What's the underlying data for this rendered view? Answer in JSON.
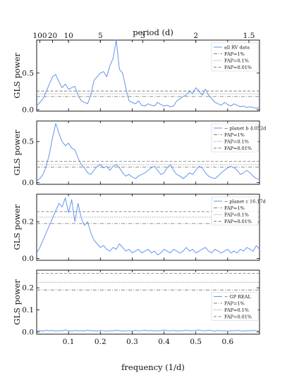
{
  "figure": {
    "top_axis_label": "period (d)",
    "top_tick_labels": [
      "100",
      "20",
      "10",
      "5",
      "3",
      "2",
      "1.5"
    ],
    "top_tick_periods": [
      100,
      20,
      10,
      5,
      3,
      2,
      1.5
    ],
    "x_label": "frequency (1/d)",
    "x_tick_labels": [
      "0.1",
      "0.2",
      "0.3",
      "0.4",
      "0.5",
      "0.6"
    ]
  },
  "colors": {
    "periodogram": "#6495ed",
    "fap": "#808080",
    "axes": "#000000"
  },
  "chart_data": [
    {
      "type": "line",
      "ylabel": "GLS power",
      "xlim": [
        0,
        0.7
      ],
      "ylim": [
        -0.02,
        0.95
      ],
      "yticks": [
        0.0,
        0.5
      ],
      "ytick_labels": [
        "0.0",
        "0.5"
      ],
      "legend_placement": "top-right",
      "series": [
        {
          "name": "all RV data",
          "x": [
            0.0,
            0.01,
            0.02,
            0.03,
            0.04,
            0.05,
            0.06,
            0.07,
            0.08,
            0.09,
            0.1,
            0.11,
            0.12,
            0.13,
            0.14,
            0.15,
            0.16,
            0.17,
            0.18,
            0.19,
            0.2,
            0.21,
            0.22,
            0.23,
            0.24,
            0.25,
            0.26,
            0.27,
            0.28,
            0.29,
            0.3,
            0.31,
            0.32,
            0.33,
            0.34,
            0.35,
            0.36,
            0.37,
            0.38,
            0.39,
            0.4,
            0.41,
            0.42,
            0.43,
            0.44,
            0.45,
            0.46,
            0.47,
            0.48,
            0.49,
            0.5,
            0.51,
            0.52,
            0.53,
            0.54,
            0.55,
            0.56,
            0.57,
            0.58,
            0.59,
            0.6,
            0.61,
            0.62,
            0.63,
            0.64,
            0.65,
            0.66,
            0.67,
            0.68,
            0.69,
            0.7
          ],
          "y": [
            0.05,
            0.1,
            0.15,
            0.25,
            0.35,
            0.45,
            0.48,
            0.38,
            0.3,
            0.35,
            0.28,
            0.3,
            0.32,
            0.2,
            0.12,
            0.1,
            0.08,
            0.2,
            0.4,
            0.45,
            0.5,
            0.52,
            0.45,
            0.6,
            0.7,
            0.95,
            0.55,
            0.5,
            0.3,
            0.12,
            0.1,
            0.08,
            0.12,
            0.06,
            0.05,
            0.08,
            0.06,
            0.05,
            0.1,
            0.07,
            0.05,
            0.06,
            0.04,
            0.05,
            0.12,
            0.15,
            0.18,
            0.2,
            0.25,
            0.22,
            0.3,
            0.25,
            0.2,
            0.28,
            0.2,
            0.15,
            0.1,
            0.08,
            0.06,
            0.1,
            0.07,
            0.05,
            0.08,
            0.06,
            0.04,
            0.05,
            0.03,
            0.04,
            0.03,
            0.02,
            0.03
          ]
        }
      ],
      "fap_levels": [
        {
          "name": "FAP=1%",
          "value": 0.18,
          "style": "dashdot"
        },
        {
          "name": "FAP=0.1%",
          "value": 0.215,
          "style": "dotted"
        },
        {
          "name": "FAP=0.01%",
          "value": 0.255,
          "style": "dashed"
        }
      ]
    },
    {
      "type": "line",
      "ylabel": "GLS power",
      "xlim": [
        0,
        0.7
      ],
      "ylim": [
        -0.02,
        0.75
      ],
      "yticks": [
        0.0,
        0.5
      ],
      "ytick_labels": [
        "0.0",
        "0.5"
      ],
      "legend_placement": "top-right",
      "series": [
        {
          "name": "− planet b 4.052d",
          "x": [
            0.0,
            0.01,
            0.02,
            0.03,
            0.04,
            0.05,
            0.06,
            0.07,
            0.08,
            0.09,
            0.1,
            0.11,
            0.12,
            0.13,
            0.14,
            0.15,
            0.16,
            0.17,
            0.18,
            0.19,
            0.2,
            0.21,
            0.22,
            0.23,
            0.24,
            0.25,
            0.26,
            0.27,
            0.28,
            0.29,
            0.3,
            0.31,
            0.32,
            0.33,
            0.34,
            0.35,
            0.36,
            0.37,
            0.38,
            0.39,
            0.4,
            0.41,
            0.42,
            0.43,
            0.44,
            0.45,
            0.46,
            0.47,
            0.48,
            0.49,
            0.5,
            0.51,
            0.52,
            0.53,
            0.54,
            0.55,
            0.56,
            0.57,
            0.58,
            0.59,
            0.6,
            0.61,
            0.62,
            0.63,
            0.64,
            0.65,
            0.66,
            0.67,
            0.68,
            0.69,
            0.7
          ],
          "y": [
            0.02,
            0.05,
            0.1,
            0.2,
            0.35,
            0.55,
            0.72,
            0.6,
            0.5,
            0.45,
            0.48,
            0.42,
            0.4,
            0.3,
            0.22,
            0.18,
            0.12,
            0.1,
            0.15,
            0.2,
            0.22,
            0.18,
            0.2,
            0.15,
            0.2,
            0.22,
            0.18,
            0.12,
            0.08,
            0.1,
            0.07,
            0.05,
            0.08,
            0.1,
            0.12,
            0.15,
            0.18,
            0.2,
            0.15,
            0.1,
            0.12,
            0.18,
            0.22,
            0.15,
            0.1,
            0.08,
            0.05,
            0.08,
            0.12,
            0.1,
            0.15,
            0.2,
            0.18,
            0.12,
            0.08,
            0.06,
            0.05,
            0.08,
            0.12,
            0.15,
            0.18,
            0.2,
            0.18,
            0.15,
            0.1,
            0.12,
            0.15,
            0.12,
            0.08,
            0.05,
            0.04
          ]
        }
      ],
      "fap_levels": [
        {
          "name": "FAP=1%",
          "value": 0.19,
          "style": "dashdot"
        },
        {
          "name": "FAP=0.1%",
          "value": 0.22,
          "style": "dotted"
        },
        {
          "name": "FAP=0.01%",
          "value": 0.26,
          "style": "dashed"
        }
      ]
    },
    {
      "type": "line",
      "ylabel": "GLS power",
      "xlim": [
        0,
        0.7
      ],
      "ylim": [
        -0.01,
        0.35
      ],
      "yticks": [
        0.0,
        0.2
      ],
      "ytick_labels": [
        "0.0",
        "0.2"
      ],
      "legend_placement": "top-right",
      "series": [
        {
          "name": "− planet c 16.17d",
          "x": [
            0.0,
            0.01,
            0.02,
            0.03,
            0.04,
            0.05,
            0.06,
            0.07,
            0.08,
            0.09,
            0.1,
            0.11,
            0.12,
            0.13,
            0.14,
            0.15,
            0.16,
            0.17,
            0.18,
            0.19,
            0.2,
            0.21,
            0.22,
            0.23,
            0.24,
            0.25,
            0.26,
            0.27,
            0.28,
            0.29,
            0.3,
            0.31,
            0.32,
            0.33,
            0.34,
            0.35,
            0.36,
            0.37,
            0.38,
            0.39,
            0.4,
            0.41,
            0.42,
            0.43,
            0.44,
            0.45,
            0.46,
            0.47,
            0.48,
            0.49,
            0.5,
            0.51,
            0.52,
            0.53,
            0.54,
            0.55,
            0.56,
            0.57,
            0.58,
            0.59,
            0.6,
            0.61,
            0.62,
            0.63,
            0.64,
            0.65,
            0.66,
            0.67,
            0.68,
            0.69,
            0.7
          ],
          "y": [
            0.03,
            0.06,
            0.1,
            0.14,
            0.18,
            0.22,
            0.26,
            0.3,
            0.28,
            0.33,
            0.25,
            0.32,
            0.2,
            0.3,
            0.22,
            0.18,
            0.2,
            0.14,
            0.1,
            0.08,
            0.06,
            0.07,
            0.05,
            0.04,
            0.06,
            0.05,
            0.08,
            0.06,
            0.04,
            0.05,
            0.03,
            0.04,
            0.05,
            0.03,
            0.04,
            0.05,
            0.03,
            0.04,
            0.02,
            0.03,
            0.05,
            0.04,
            0.03,
            0.05,
            0.04,
            0.03,
            0.04,
            0.06,
            0.04,
            0.05,
            0.03,
            0.04,
            0.05,
            0.06,
            0.04,
            0.03,
            0.05,
            0.04,
            0.03,
            0.04,
            0.05,
            0.03,
            0.04,
            0.03,
            0.05,
            0.04,
            0.06,
            0.05,
            0.04,
            0.07,
            0.05
          ]
        }
      ],
      "fap_levels": [
        {
          "name": "FAP=1%",
          "value": 0.19,
          "style": "dashdot"
        },
        {
          "name": "FAP=0.1%",
          "value": 0.225,
          "style": "dotted"
        },
        {
          "name": "FAP=0.01%",
          "value": 0.255,
          "style": "dashed"
        }
      ]
    },
    {
      "type": "line",
      "ylabel": "GLS power",
      "xlim": [
        0,
        0.7
      ],
      "ylim": [
        -0.01,
        0.28
      ],
      "yticks": [
        0.0,
        0.1,
        0.2
      ],
      "ytick_labels": [
        "0.0",
        "0.1",
        "0.2"
      ],
      "legend_placement": "right",
      "series": [
        {
          "name": "− GP REAL",
          "x": [
            0.0,
            0.01,
            0.02,
            0.03,
            0.04,
            0.05,
            0.06,
            0.07,
            0.08,
            0.09,
            0.1,
            0.11,
            0.12,
            0.13,
            0.14,
            0.15,
            0.16,
            0.17,
            0.18,
            0.19,
            0.2,
            0.21,
            0.22,
            0.23,
            0.24,
            0.25,
            0.26,
            0.27,
            0.28,
            0.29,
            0.3,
            0.31,
            0.32,
            0.33,
            0.34,
            0.35,
            0.36,
            0.37,
            0.38,
            0.39,
            0.4,
            0.41,
            0.42,
            0.43,
            0.44,
            0.45,
            0.46,
            0.47,
            0.48,
            0.49,
            0.5,
            0.51,
            0.52,
            0.53,
            0.54,
            0.55,
            0.56,
            0.57,
            0.58,
            0.59,
            0.6,
            0.61,
            0.62,
            0.63,
            0.64,
            0.65,
            0.66,
            0.67,
            0.68,
            0.69,
            0.7
          ],
          "y": [
            0.003,
            0.006,
            0.004,
            0.008,
            0.005,
            0.007,
            0.004,
            0.006,
            0.005,
            0.009,
            0.006,
            0.004,
            0.007,
            0.005,
            0.006,
            0.004,
            0.008,
            0.005,
            0.006,
            0.004,
            0.007,
            0.005,
            0.004,
            0.006,
            0.005,
            0.008,
            0.006,
            0.004,
            0.005,
            0.006,
            0.004,
            0.007,
            0.005,
            0.006,
            0.008,
            0.005,
            0.007,
            0.004,
            0.006,
            0.005,
            0.009,
            0.006,
            0.005,
            0.007,
            0.004,
            0.006,
            0.005,
            0.008,
            0.006,
            0.005,
            0.007,
            0.009,
            0.006,
            0.005,
            0.008,
            0.006,
            0.004,
            0.007,
            0.005,
            0.006,
            0.004,
            0.006,
            0.005,
            0.007,
            0.005,
            0.004,
            0.006,
            0.005,
            0.007,
            0.005,
            0.004
          ]
        }
      ],
      "fap_levels": [
        {
          "name": "FAP=1%",
          "value": 0.19,
          "style": "dashdot"
        },
        {
          "name": "FAP=0.1%",
          "value": 0.225,
          "style": "dotted"
        },
        {
          "name": "FAP=0.01%",
          "value": 0.265,
          "style": "dashed"
        }
      ]
    }
  ]
}
